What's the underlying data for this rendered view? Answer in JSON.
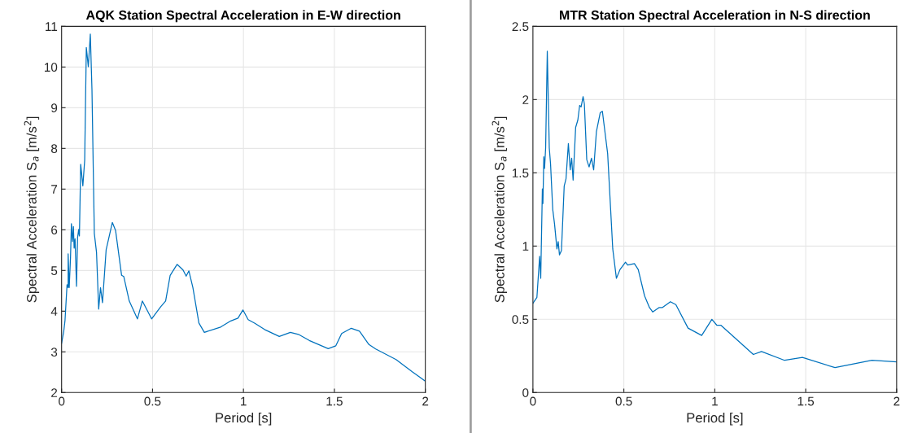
{
  "chart_data": [
    {
      "type": "line",
      "title": "AQK Station Spectral Acceleration in E-W direction",
      "xlabel": "Period [s]",
      "ylabel": "Spectral Acceleration S$_{a}$ [m/s$^{2}$]",
      "xlim": [
        0,
        2
      ],
      "ylim": [
        2,
        11
      ],
      "xticks": [
        0,
        0.5,
        1,
        1.5,
        2
      ],
      "yticks": [
        2,
        3,
        4,
        5,
        6,
        7,
        8,
        9,
        10,
        11
      ],
      "grid": true,
      "line_style": "solid",
      "series": [
        {
          "color": "#0072bd",
          "x": [
            0,
            0.012,
            0.019,
            0.03,
            0.036,
            0.036,
            0.042,
            0.049,
            0.054,
            0.06,
            0.065,
            0.069,
            0.074,
            0.082,
            0.088,
            0.094,
            0.098,
            0.105,
            0.117,
            0.127,
            0.136,
            0.147,
            0.158,
            0.167,
            0.18,
            0.192,
            0.204,
            0.214,
            0.225,
            0.245,
            0.279,
            0.297,
            0.33,
            0.342,
            0.372,
            0.417,
            0.444,
            0.495,
            0.545,
            0.572,
            0.597,
            0.635,
            0.668,
            0.685,
            0.7,
            0.722,
            0.755,
            0.785,
            0.875,
            0.93,
            0.97,
            0.997,
            1.026,
            1.063,
            1.116,
            1.197,
            1.258,
            1.302,
            1.362,
            1.466,
            1.508,
            1.54,
            1.593,
            1.638,
            1.69,
            1.727,
            1.839,
            1.928,
            2.0
          ],
          "values": [
            3.21,
            3.51,
            3.78,
            4.65,
            4.58,
            5.41,
            4.58,
            5.31,
            6.15,
            5.71,
            6.08,
            5.55,
            5.78,
            4.61,
            5.81,
            6.01,
            5.85,
            7.61,
            7.08,
            7.71,
            10.48,
            10.01,
            10.81,
            9.45,
            5.91,
            5.45,
            4.05,
            4.58,
            4.21,
            5.51,
            6.18,
            5.98,
            4.88,
            4.85,
            4.25,
            3.81,
            4.25,
            3.81,
            4.11,
            4.25,
            4.88,
            5.15,
            5.01,
            4.86,
            4.99,
            4.58,
            3.71,
            3.48,
            3.61,
            3.76,
            3.83,
            4.03,
            3.79,
            3.7,
            3.55,
            3.38,
            3.48,
            3.43,
            3.28,
            3.08,
            3.15,
            3.45,
            3.58,
            3.51,
            3.18,
            3.07,
            2.81,
            2.51,
            2.28
          ]
        }
      ]
    },
    {
      "type": "line",
      "title": "MTR Station Spectral Acceleration in N-S direction",
      "xlabel": "Period [s]",
      "ylabel": "Spectral Acceleration S$_{a}$ [m/s$^{2}$]",
      "xlim": [
        0,
        2
      ],
      "ylim": [
        0,
        2.5
      ],
      "xticks": [
        0,
        0.5,
        1,
        1.5,
        2
      ],
      "yticks": [
        0,
        0.5,
        1,
        1.5,
        2,
        2.5
      ],
      "grid": true,
      "line_style": "solid",
      "series": [
        {
          "color": "#0072bd",
          "x": [
            0,
            0.022,
            0.037,
            0.043,
            0.052,
            0.055,
            0.06,
            0.064,
            0.07,
            0.079,
            0.09,
            0.097,
            0.109,
            0.119,
            0.132,
            0.139,
            0.146,
            0.157,
            0.172,
            0.182,
            0.195,
            0.205,
            0.213,
            0.221,
            0.235,
            0.247,
            0.257,
            0.265,
            0.276,
            0.283,
            0.296,
            0.309,
            0.322,
            0.334,
            0.349,
            0.37,
            0.382,
            0.411,
            0.439,
            0.459,
            0.479,
            0.509,
            0.521,
            0.558,
            0.579,
            0.614,
            0.641,
            0.659,
            0.693,
            0.711,
            0.756,
            0.786,
            0.853,
            0.928,
            0.984,
            1.011,
            1.033,
            1.212,
            1.257,
            1.384,
            1.482,
            1.661,
            1.864,
            2.0
          ],
          "values": [
            0.61,
            0.65,
            0.93,
            0.78,
            1.39,
            1.29,
            1.61,
            1.53,
            1.67,
            2.33,
            1.67,
            1.56,
            1.25,
            1.15,
            0.98,
            1.03,
            0.94,
            0.97,
            1.41,
            1.46,
            1.7,
            1.52,
            1.6,
            1.45,
            1.81,
            1.86,
            1.96,
            1.95,
            2.02,
            1.97,
            1.59,
            1.54,
            1.6,
            1.52,
            1.78,
            1.91,
            1.92,
            1.63,
            0.98,
            0.78,
            0.84,
            0.89,
            0.87,
            0.88,
            0.84,
            0.66,
            0.58,
            0.55,
            0.58,
            0.58,
            0.62,
            0.6,
            0.44,
            0.39,
            0.5,
            0.46,
            0.46,
            0.26,
            0.28,
            0.22,
            0.24,
            0.17,
            0.22,
            0.21
          ]
        }
      ]
    }
  ]
}
